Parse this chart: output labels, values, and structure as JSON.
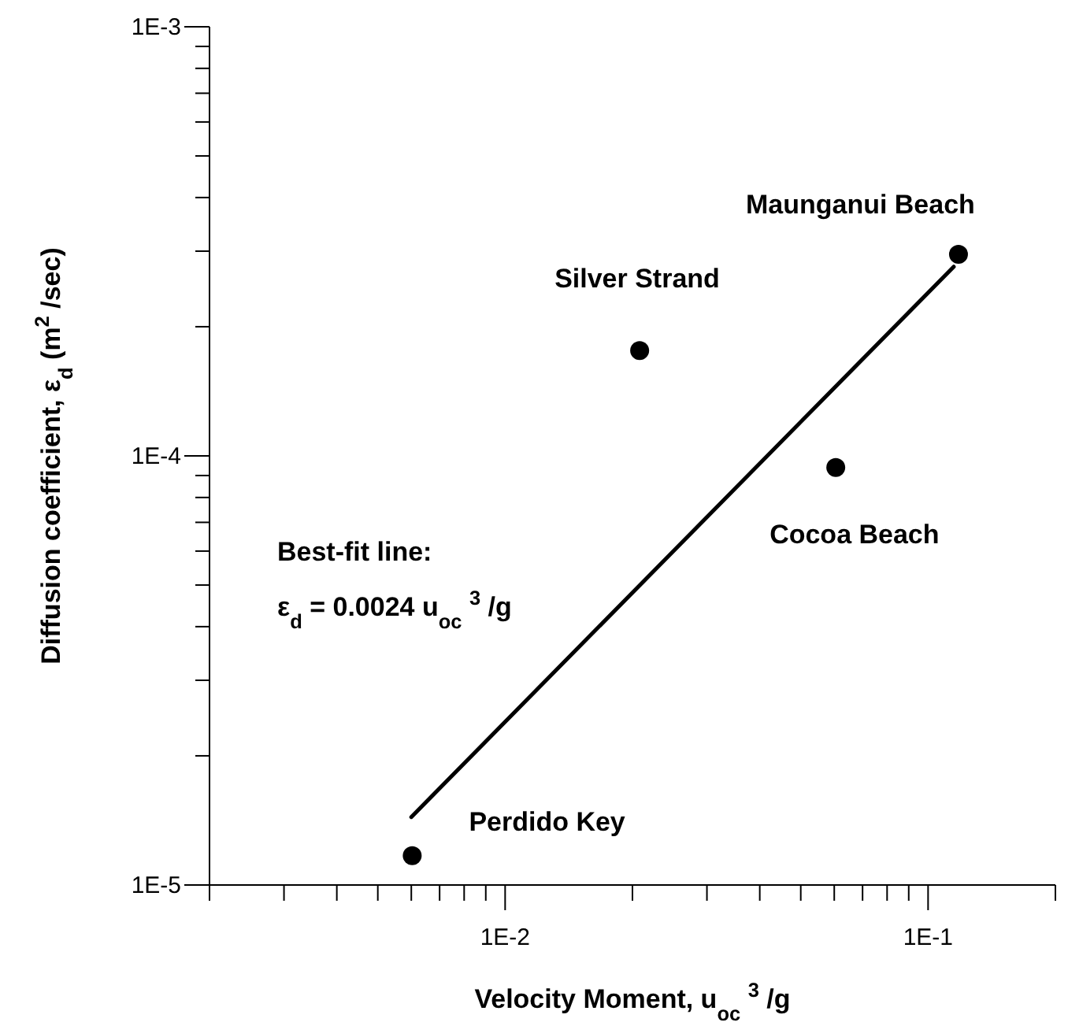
{
  "chart_data": {
    "type": "scatter",
    "xlabel": "Velocity Moment, u$_{oc}$ $^{3}$ /g",
    "ylabel": "Diffusion coefficient, ε$_{d}$ (m$^{2}$ /sec)",
    "log": "xy",
    "xlim": [
      0.002,
      0.2
    ],
    "ylim": [
      1e-05,
      0.001
    ],
    "xticks": [
      {
        "value": 0.002,
        "label": null
      },
      {
        "value": 0.003,
        "label": null
      },
      {
        "value": 0.004,
        "label": null
      },
      {
        "value": 0.005,
        "label": null
      },
      {
        "value": 0.006,
        "label": null
      },
      {
        "value": 0.007,
        "label": null
      },
      {
        "value": 0.008,
        "label": null
      },
      {
        "value": 0.009,
        "label": null
      },
      {
        "value": 0.01,
        "label": "1E-2"
      },
      {
        "value": 0.02,
        "label": null
      },
      {
        "value": 0.03,
        "label": null
      },
      {
        "value": 0.04,
        "label": null
      },
      {
        "value": 0.05,
        "label": null
      },
      {
        "value": 0.06,
        "label": null
      },
      {
        "value": 0.07,
        "label": null
      },
      {
        "value": 0.08,
        "label": null
      },
      {
        "value": 0.09,
        "label": null
      },
      {
        "value": 0.1,
        "label": "1E-1"
      },
      {
        "value": 0.2,
        "label": null
      }
    ],
    "yticks": [
      {
        "value": 1e-05,
        "label": "1E-5"
      },
      {
        "value": 2e-05,
        "label": null
      },
      {
        "value": 3e-05,
        "label": null
      },
      {
        "value": 4e-05,
        "label": null
      },
      {
        "value": 5e-05,
        "label": null
      },
      {
        "value": 6e-05,
        "label": null
      },
      {
        "value": 7e-05,
        "label": null
      },
      {
        "value": 8e-05,
        "label": null
      },
      {
        "value": 9e-05,
        "label": null
      },
      {
        "value": 0.0001,
        "label": "1E-4"
      },
      {
        "value": 0.0002,
        "label": null
      },
      {
        "value": 0.0003,
        "label": null
      },
      {
        "value": 0.0004,
        "label": null
      },
      {
        "value": 0.0005,
        "label": null
      },
      {
        "value": 0.0006,
        "label": null
      },
      {
        "value": 0.0007,
        "label": null
      },
      {
        "value": 0.0008,
        "label": null
      },
      {
        "value": 0.0009,
        "label": null
      },
      {
        "value": 0.001,
        "label": "1E-3"
      }
    ],
    "marker": "circle",
    "series": [
      {
        "color": "#000000",
        "x": [
          0.00603,
          0.0208,
          0.0605,
          0.118
        ],
        "values": [
          1.17e-05,
          0.000176,
          9.4e-05,
          0.000295
        ]
      },
      {
        "type": "line",
        "marker": "none",
        "color": "#000000",
        "x": [
          0.006,
          0.115
        ],
        "values": [
          1.44e-05,
          0.000276
        ]
      }
    ],
    "annotations": [
      {
        "text": "Perdido Key",
        "x": 0.00603,
        "y": 1.17e-05
      },
      {
        "text": "Silver Strand",
        "x": 0.0208,
        "y": 0.000176
      },
      {
        "text": "Cocoa Beach",
        "x": 0.0605,
        "y": 9.4e-05
      },
      {
        "text": "Maunganui Beach",
        "x": 0.118,
        "y": 0.000295
      },
      "Best-fit line:",
      "ε$_{d}$ = 0.0024 u$_{oc}$ $^{3}$ /g"
    ]
  }
}
